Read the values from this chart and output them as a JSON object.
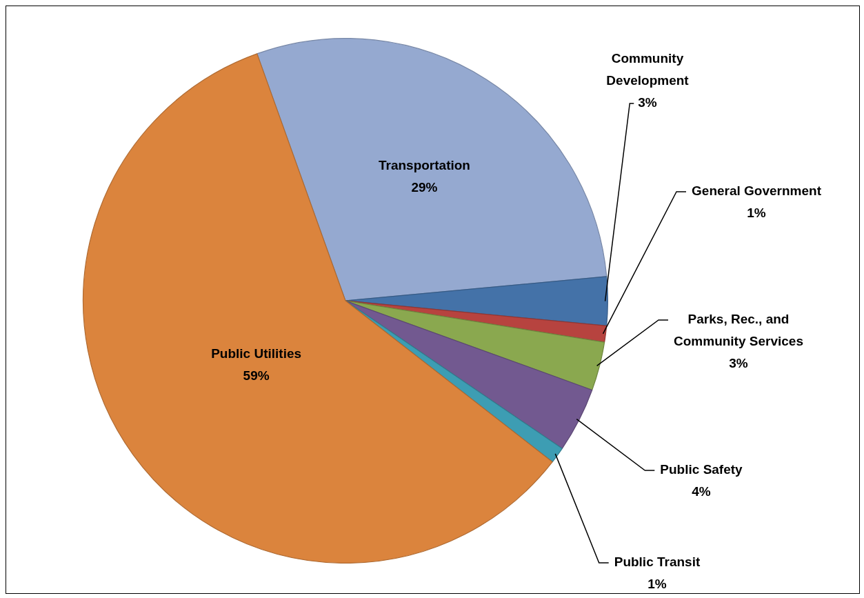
{
  "chart_data": {
    "type": "pie",
    "categories": [
      "Transportation",
      "Community Development",
      "General Government",
      "Parks, Rec., and Community Services",
      "Public Safety",
      "Public Transit",
      "Public Utilities"
    ],
    "values": [
      29,
      3,
      1,
      3,
      4,
      1,
      59
    ],
    "colors": [
      "#95a9d0",
      "#4472a8",
      "#b7433f",
      "#8aa84f",
      "#725990",
      "#3d9db3",
      "#db843d"
    ],
    "value_labels": [
      "29%",
      "3%",
      "1%",
      "3%",
      "4%",
      "1%",
      "59%"
    ],
    "legend": false
  }
}
